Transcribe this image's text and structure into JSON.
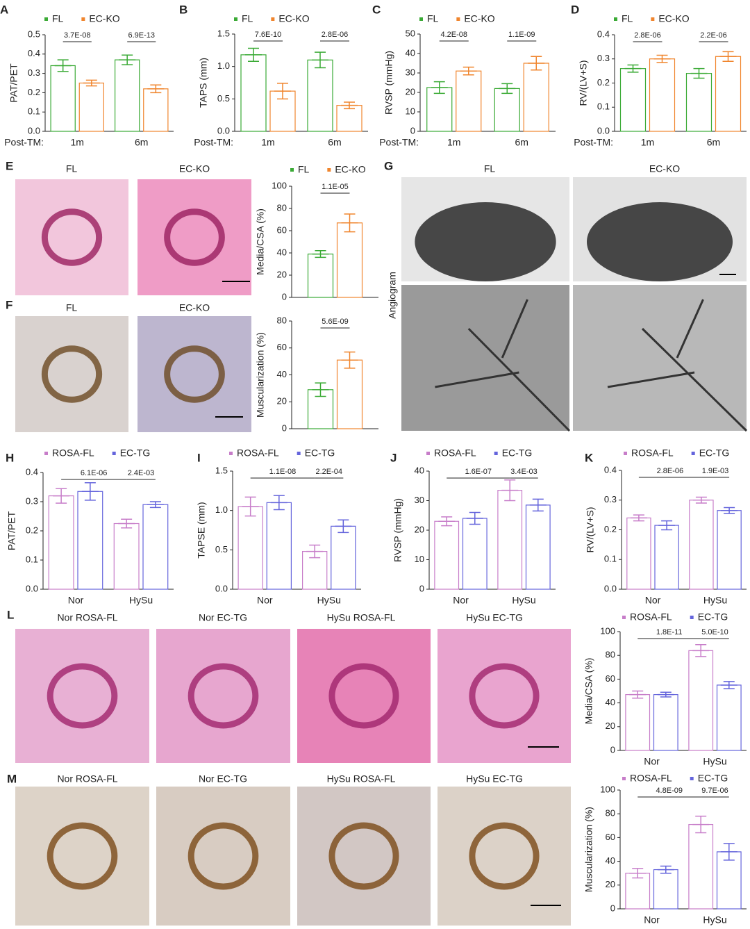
{
  "chart_data": [
    {
      "type": "bar",
      "label": "A",
      "ylabel": "PAT/PET",
      "xlabel": "Post-TM:",
      "categories": [
        "1m",
        "6m"
      ],
      "legend": true,
      "series": [
        {
          "name": "FL",
          "color": "#3aaa35",
          "values": [
            0.34,
            0.37
          ],
          "errors": [
            0.03,
            0.025
          ]
        },
        {
          "name": "EC-KO",
          "color": "#f0852d",
          "values": [
            0.25,
            0.22
          ],
          "errors": [
            0.015,
            0.02
          ]
        }
      ],
      "ylim": [
        0,
        0.5
      ],
      "yticks": [
        {
          "value": 0,
          "label": "0.0"
        },
        0.1,
        0.2,
        0.3,
        0.4,
        0.5
      ],
      "annotations": [
        "3.7E-08",
        "6.9E-13"
      ]
    },
    {
      "type": "bar",
      "label": "B",
      "ylabel": "TAPS (mm)",
      "xlabel": "Post-TM:",
      "categories": [
        "1m",
        "6m"
      ],
      "legend": true,
      "series": [
        {
          "name": "FL",
          "color": "#3aaa35",
          "values": [
            1.18,
            1.1
          ],
          "errors": [
            0.1,
            0.12
          ]
        },
        {
          "name": "EC-KO",
          "color": "#f0852d",
          "values": [
            0.62,
            0.4
          ],
          "errors": [
            0.12,
            0.05
          ]
        }
      ],
      "ylim": [
        0,
        1.5
      ],
      "yticks": [
        {
          "value": 0,
          "label": "0.0"
        },
        0.5,
        {
          "value": 1,
          "label": "1.0"
        },
        1.5
      ],
      "annotations": [
        "7.6E-10",
        "2.8E-06"
      ]
    },
    {
      "type": "bar",
      "label": "C",
      "ylabel": "RVSP (mmHg)",
      "xlabel": "Post-TM:",
      "categories": [
        "1m",
        "6m"
      ],
      "legend": true,
      "series": [
        {
          "name": "FL",
          "color": "#3aaa35",
          "values": [
            22.5,
            22
          ],
          "errors": [
            3,
            2.5
          ]
        },
        {
          "name": "EC-KO",
          "color": "#f0852d",
          "values": [
            31,
            35
          ],
          "errors": [
            2,
            3.5
          ]
        }
      ],
      "ylim": [
        0,
        50
      ],
      "yticks": [
        0,
        10,
        20,
        30,
        40,
        50
      ],
      "annotations": [
        "4.2E-08",
        "1.1E-09"
      ]
    },
    {
      "type": "bar",
      "label": "D",
      "ylabel": "RV/(LV+S)",
      "xlabel": "Post-TM:",
      "categories": [
        "1m",
        "6m"
      ],
      "legend": true,
      "series": [
        {
          "name": "FL",
          "color": "#3aaa35",
          "values": [
            0.26,
            0.24
          ],
          "errors": [
            0.015,
            0.02
          ]
        },
        {
          "name": "EC-KO",
          "color": "#f0852d",
          "values": [
            0.3,
            0.31
          ],
          "errors": [
            0.015,
            0.02
          ]
        }
      ],
      "ylim": [
        0,
        0.4
      ],
      "yticks": [
        {
          "value": 0,
          "label": "0.0"
        },
        0.1,
        0.2,
        0.3,
        0.4
      ],
      "annotations": [
        "2.8E-06",
        "2.2E-06"
      ]
    },
    {
      "type": "bar",
      "label": "E",
      "ylabel": "Media/CSA (%)",
      "categories": [
        null
      ],
      "legend": true,
      "series": [
        {
          "name": "FL",
          "color": "#3aaa35",
          "values": [
            39
          ],
          "errors": [
            3
          ]
        },
        {
          "name": "EC-KO",
          "color": "#f0852d",
          "values": [
            67
          ],
          "errors": [
            8
          ]
        }
      ],
      "ylim": [
        0,
        100
      ],
      "yticks": [
        0,
        20,
        40,
        60,
        80,
        100
      ],
      "annotations": [
        "1.1E-05"
      ]
    },
    {
      "type": "bar",
      "label": "F",
      "ylabel": "Muscularization (%)",
      "categories": [
        null
      ],
      "legend": false,
      "series": [
        {
          "name": "FL",
          "color": "#3aaa35",
          "values": [
            29
          ],
          "errors": [
            5
          ]
        },
        {
          "name": "EC-KO",
          "color": "#f0852d",
          "values": [
            51
          ],
          "errors": [
            6
          ]
        }
      ],
      "ylim": [
        0,
        80
      ],
      "yticks": [
        0,
        20,
        40,
        60,
        80
      ],
      "annotations": [
        "5.6E-09"
      ]
    },
    {
      "type": "bar",
      "label": "H",
      "ylabel": "PAT/PET",
      "categories": [
        "Nor",
        "HySu"
      ],
      "legend": true,
      "series": [
        {
          "name": "ROSA-FL",
          "color": "#c77dc9",
          "values": [
            0.32,
            0.225
          ],
          "errors": [
            0.025,
            0.015
          ]
        },
        {
          "name": "EC-TG",
          "color": "#6464dc",
          "values": [
            0.335,
            0.29
          ],
          "errors": [
            0.03,
            0.01
          ]
        }
      ],
      "ylim": [
        0,
        0.4
      ],
      "yticks": [
        {
          "value": 0,
          "label": "0.0"
        },
        0.1,
        0.2,
        0.3,
        0.4
      ],
      "annotations": [
        "6.1E-06",
        "2.4E-03"
      ]
    },
    {
      "type": "bar",
      "label": "I",
      "ylabel": "TAPSE (mm)",
      "categories": [
        "Nor",
        "HySu"
      ],
      "legend": true,
      "series": [
        {
          "name": "ROSA-FL",
          "color": "#c77dc9",
          "values": [
            1.05,
            0.48
          ],
          "errors": [
            0.12,
            0.08
          ]
        },
        {
          "name": "EC-TG",
          "color": "#6464dc",
          "values": [
            1.1,
            0.8
          ],
          "errors": [
            0.09,
            0.08
          ]
        }
      ],
      "ylim": [
        0,
        1.5
      ],
      "yticks": [
        {
          "value": 0,
          "label": "0.0"
        },
        0.5,
        {
          "value": 1,
          "label": "1.0"
        },
        1.5
      ],
      "annotations": [
        "1.1E-08",
        "2.2E-04"
      ]
    },
    {
      "type": "bar",
      "label": "J",
      "ylabel": "RVSP (mmHg)",
      "categories": [
        "Nor",
        "HySu"
      ],
      "legend": true,
      "series": [
        {
          "name": "ROSA-FL",
          "color": "#c77dc9",
          "values": [
            23,
            33.5
          ],
          "errors": [
            1.5,
            3.5
          ]
        },
        {
          "name": "EC-TG",
          "color": "#6464dc",
          "values": [
            24,
            28.5
          ],
          "errors": [
            2,
            2
          ]
        }
      ],
      "ylim": [
        0,
        40
      ],
      "yticks": [
        0,
        10,
        20,
        30,
        40
      ],
      "annotations": [
        "1.6E-07",
        "3.4E-03"
      ]
    },
    {
      "type": "bar",
      "label": "K",
      "ylabel": "RV/(LV+S)",
      "categories": [
        "Nor",
        "HySu"
      ],
      "legend": true,
      "series": [
        {
          "name": "ROSA-FL",
          "color": "#c77dc9",
          "values": [
            0.24,
            0.3
          ],
          "errors": [
            0.01,
            0.01
          ]
        },
        {
          "name": "EC-TG",
          "color": "#6464dc",
          "values": [
            0.215,
            0.265
          ],
          "errors": [
            0.015,
            0.01
          ]
        }
      ],
      "ylim": [
        0,
        0.4
      ],
      "yticks": [
        {
          "value": 0,
          "label": "0.0"
        },
        0.1,
        0.2,
        0.3,
        0.4
      ],
      "annotations": [
        "2.8E-06",
        "1.9E-03"
      ]
    },
    {
      "type": "bar",
      "ylabel": "Media/CSA (%)",
      "categories": [
        "Nor",
        "HySu"
      ],
      "legend": true,
      "series": [
        {
          "name": "ROSA-FL",
          "color": "#c77dc9",
          "values": [
            47,
            84
          ],
          "errors": [
            3,
            5
          ]
        },
        {
          "name": "EC-TG",
          "color": "#6464dc",
          "values": [
            47,
            55
          ],
          "errors": [
            2,
            3
          ]
        }
      ],
      "ylim": [
        0,
        100
      ],
      "yticks": [
        0,
        20,
        40,
        60,
        80,
        100
      ],
      "annotations": [
        "1.8E-11",
        "5.0E-10"
      ]
    },
    {
      "type": "bar",
      "ylabel": "Muscularization (%)",
      "categories": [
        "Nor",
        "HySu"
      ],
      "legend": true,
      "series": [
        {
          "name": "ROSA-FL",
          "color": "#c77dc9",
          "values": [
            30,
            71
          ],
          "errors": [
            4,
            7
          ]
        },
        {
          "name": "EC-TG",
          "color": "#6464dc",
          "values": [
            33,
            48
          ],
          "errors": [
            3,
            7
          ]
        }
      ],
      "ylim": [
        0,
        100
      ],
      "yticks": [
        0,
        20,
        40,
        60,
        80,
        100
      ],
      "annotations": [
        "4.8E-09",
        "9.7E-06"
      ]
    }
  ],
  "image_panels": [
    {
      "titles": [
        "FL",
        "EC-KO"
      ]
    },
    {
      "titles": [
        "FL",
        "EC-KO"
      ]
    },
    {
      "label": "G",
      "titles": [
        "FL",
        "EC-KO"
      ],
      "side_label": "Angiogram"
    },
    {
      "label": "L",
      "titles": [
        "Nor ROSA-FL",
        "Nor EC-TG",
        "HySu ROSA-FL",
        "HySu EC-TG"
      ]
    },
    {
      "label": "M",
      "titles": [
        "Nor ROSA-FL",
        "Nor EC-TG",
        "HySu ROSA-FL",
        "HySu EC-TG"
      ]
    }
  ]
}
